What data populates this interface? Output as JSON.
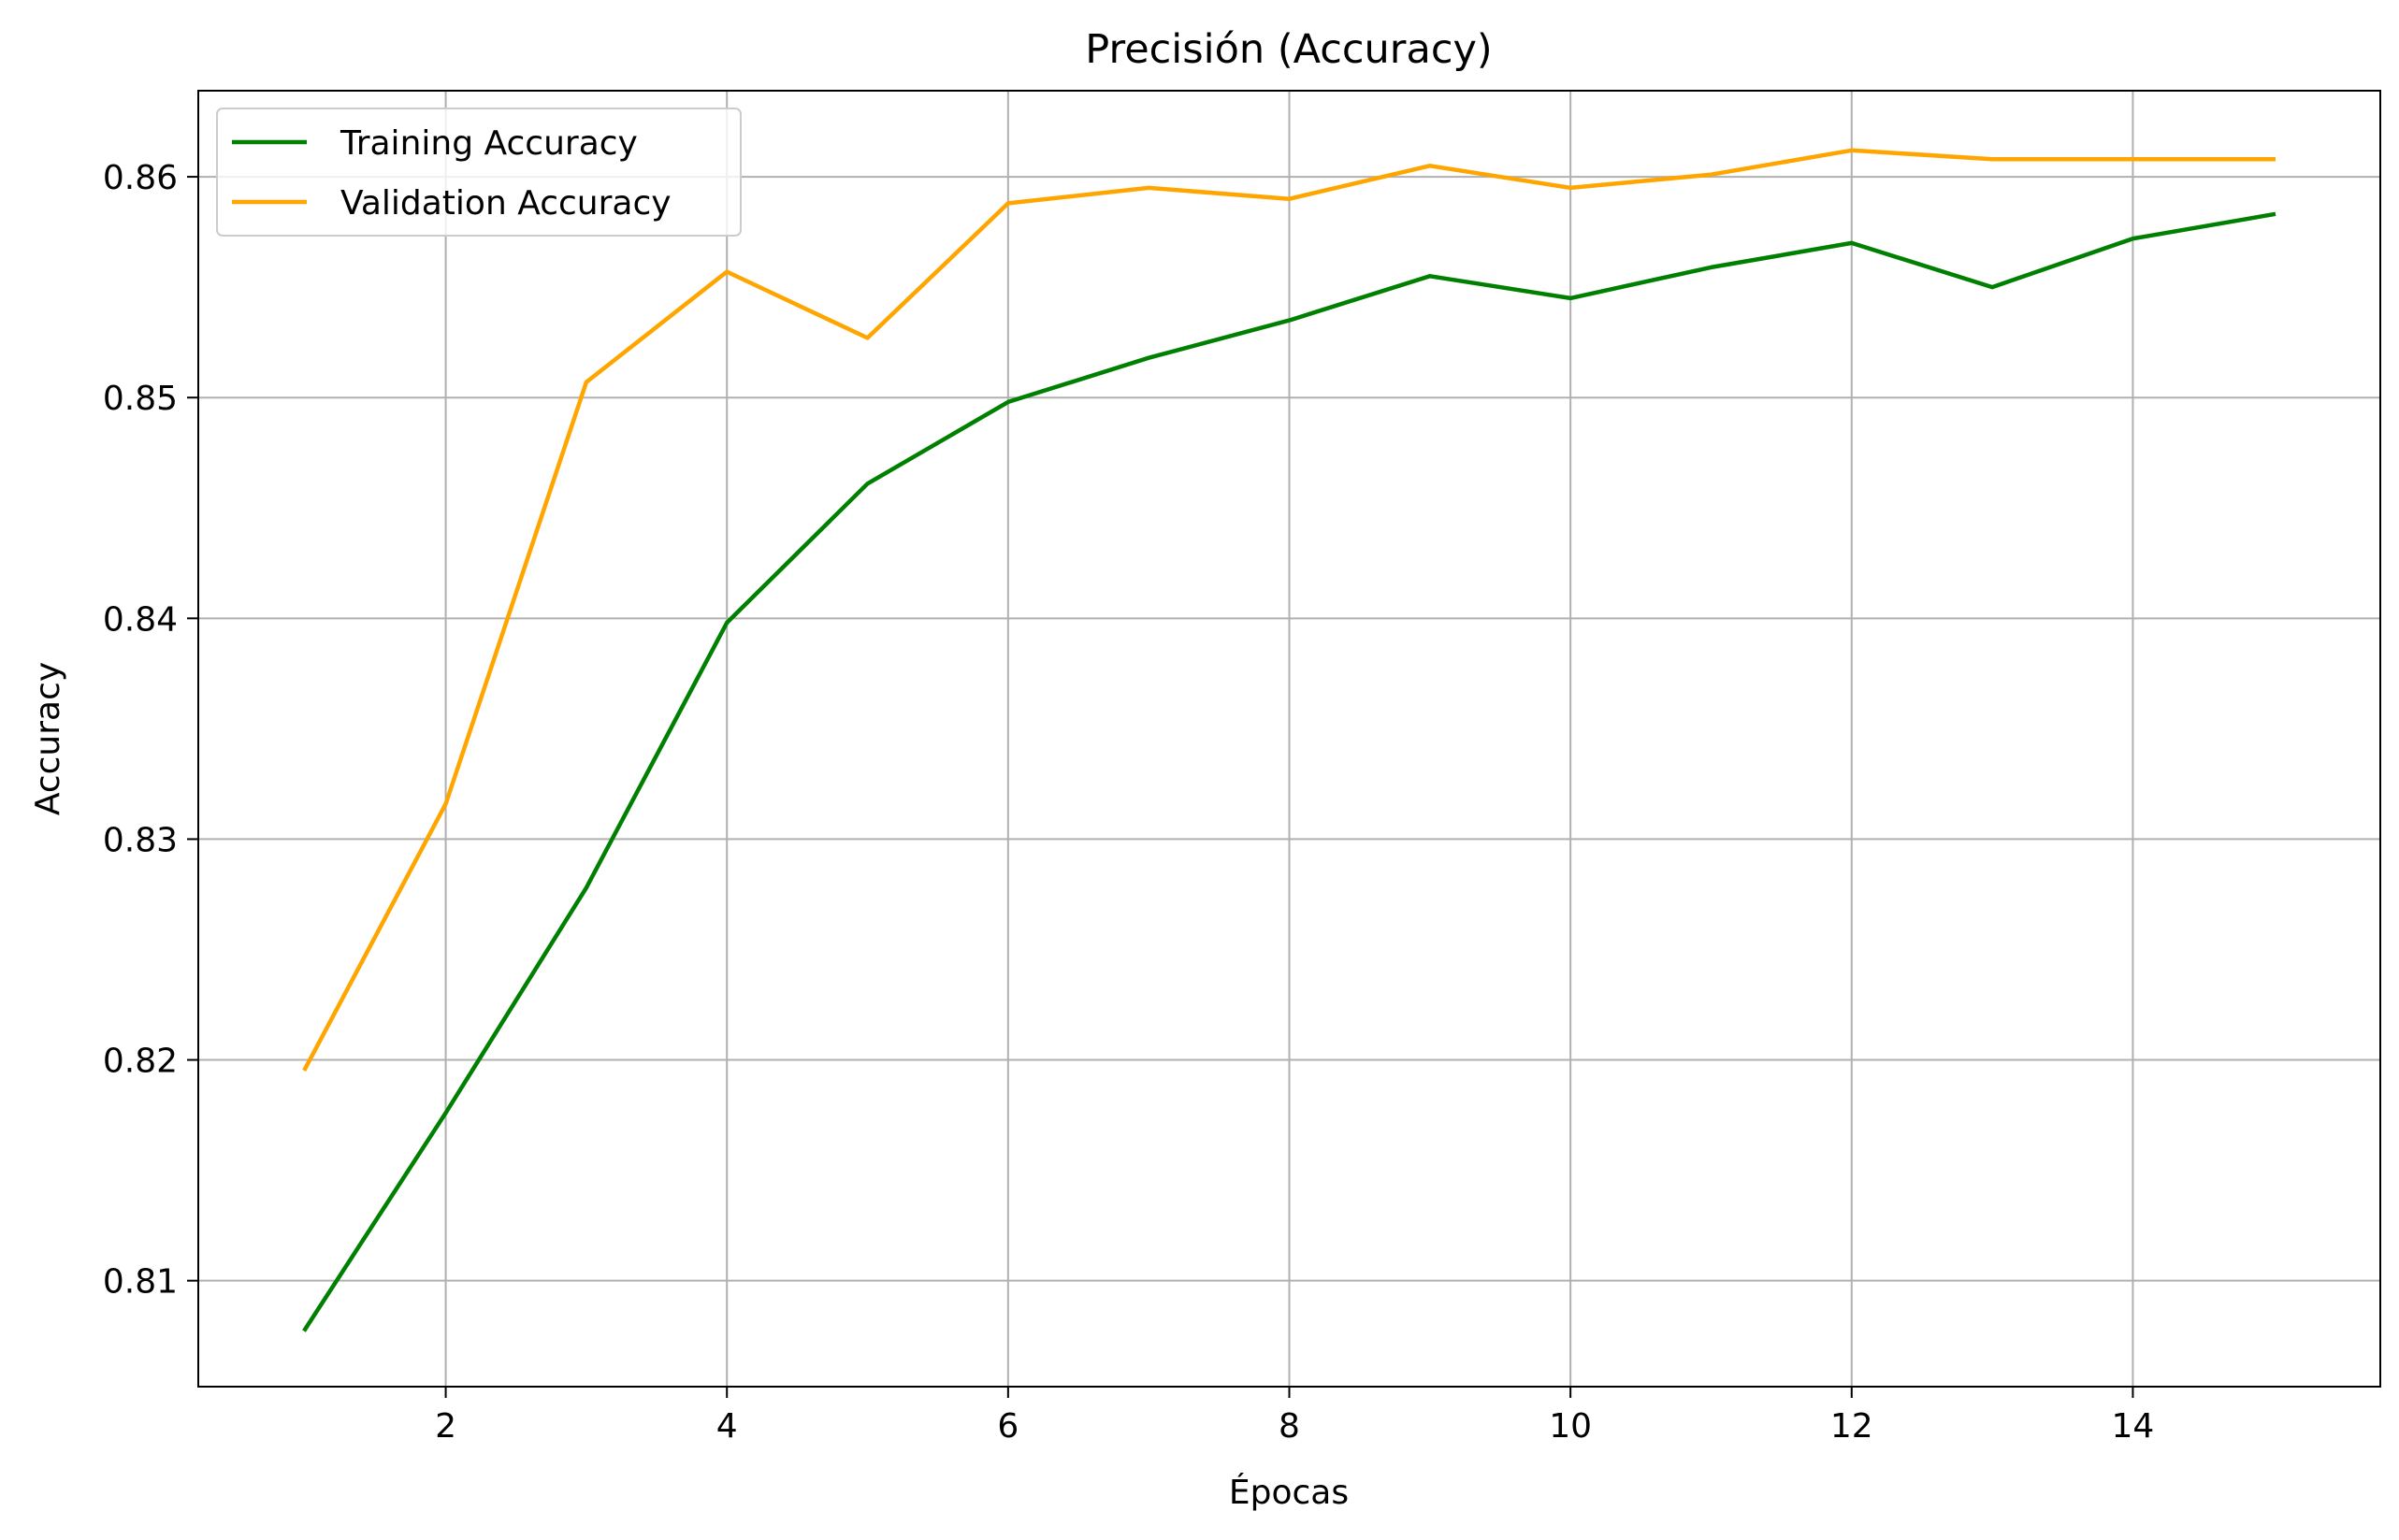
{
  "chart_data": {
    "type": "line",
    "title": "Precisión (Accuracy)",
    "xlabel": "Épocas",
    "ylabel": "Accuracy",
    "x": [
      1,
      2,
      3,
      4,
      5,
      6,
      7,
      8,
      9,
      10,
      11,
      12,
      13,
      14,
      15
    ],
    "xlim": [
      0.24,
      15.76
    ],
    "ylim": [
      0.8052,
      0.8639
    ],
    "xticks": [
      2,
      4,
      6,
      8,
      10,
      12,
      14
    ],
    "yticks": [
      0.81,
      0.82,
      0.83,
      0.84,
      0.85,
      0.86
    ],
    "xtick_labels": [
      "2",
      "4",
      "6",
      "8",
      "10",
      "12",
      "14"
    ],
    "ytick_labels": [
      "0.81",
      "0.82",
      "0.83",
      "0.84",
      "0.85",
      "0.86"
    ],
    "grid": true,
    "legend_position": "upper left",
    "series": [
      {
        "name": "Training Accuracy",
        "color": "#008000",
        "values": [
          0.8078,
          0.8176,
          0.8278,
          0.8398,
          0.8461,
          0.8498,
          0.8518,
          0.8535,
          0.8555,
          0.8545,
          0.8559,
          0.857,
          0.855,
          0.8572,
          0.8583
        ]
      },
      {
        "name": "Validation Accuracy",
        "color": "#FFA500",
        "values": [
          0.8196,
          0.8316,
          0.8507,
          0.8557,
          0.8527,
          0.8588,
          0.8595,
          0.859,
          0.8605,
          0.8595,
          0.8601,
          0.8612,
          0.8608,
          0.8608,
          0.8608
        ]
      }
    ]
  }
}
